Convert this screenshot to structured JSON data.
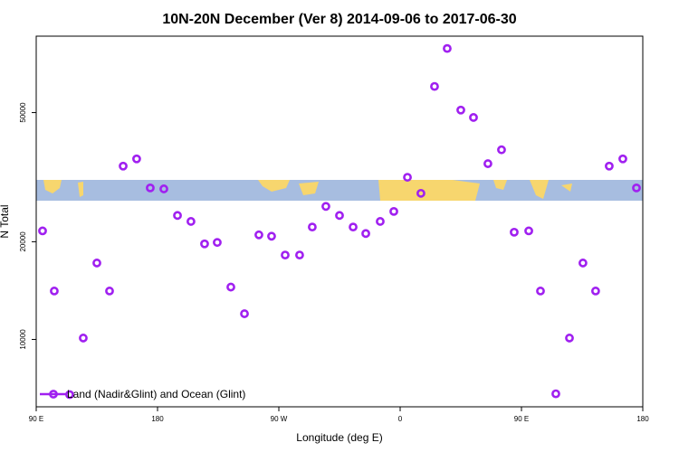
{
  "chart_data": {
    "type": "scatter",
    "title": "10N-20N December (Ver 8)   2014-09-06 to 2017-06-30",
    "x_label": "Longitude (deg E)",
    "y_label": "N Total",
    "xlim": [
      90,
      540
    ],
    "ylim": [
      6200,
      86000
    ],
    "ylog": true,
    "legend_position": "bottom-left",
    "xticks": [
      {
        "value": 90,
        "label": "90 E"
      },
      180,
      {
        "value": 270,
        "label": "90 W"
      },
      {
        "value": 360,
        "label": "0"
      },
      {
        "value": 450,
        "label": "90 E"
      },
      {
        "value": 540,
        "label": "180"
      }
    ],
    "yticks": [
      10000,
      20000,
      50000
    ],
    "series": [
      {
        "name": "Land (Nadir&Glint) and Ocean (Glint)",
        "color": "#a020f0",
        "x": [
          94.7,
          103.4,
          114.8,
          124.9,
          135,
          144.4,
          154.5,
          164.5,
          174.6,
          184.7,
          194.8,
          204.8,
          214.9,
          224.3,
          234.4,
          244.5,
          255.2,
          264.6,
          274.7,
          285.4,
          294.8,
          304.9,
          315,
          325.1,
          334.5,
          345.2,
          355.3,
          365.4,
          375.4,
          385.5,
          394.9,
          405,
          414.4,
          425.1,
          435.2,
          444.6,
          455.4,
          464.1,
          475.5,
          485.6,
          495.6,
          505,
          515.1,
          525.2,
          535.3
        ],
        "values": [
          21600,
          14100,
          6760,
          10100,
          17200,
          14100,
          34200,
          36000,
          29300,
          29100,
          24100,
          23100,
          19700,
          19900,
          14500,
          12000,
          21000,
          20800,
          18200,
          18200,
          22200,
          25700,
          24100,
          22200,
          21200,
          23100,
          24800,
          31600,
          28200,
          60200,
          78800,
          50900,
          48300,
          34800,
          38400,
          21400,
          21600,
          14100,
          6800,
          10100,
          17200,
          14100,
          34200,
          36000,
          29300
        ]
      }
    ]
  }
}
